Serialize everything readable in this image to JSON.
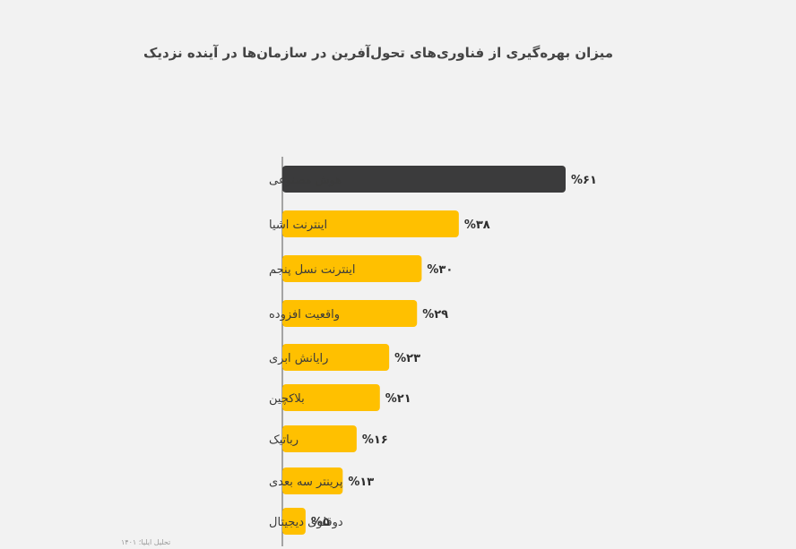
{
  "chart_data": {
    "type": "bar",
    "orientation": "horizontal",
    "title": "میزان بهره‌گیری از فناوری‌های تحول‌آفرین در سازمان‌ها در آینده نزدیک",
    "categories": [
      "هوش مصنوعی",
      "اینترنت اشیا",
      "اینترنت نسل پنجم",
      "واقعیت افزوده",
      "رایانش ابری",
      "بلاکچین",
      "رباتیک",
      "پرینتر سه بعدی",
      "دوقلوی دیجیتال"
    ],
    "values": [
      61,
      38,
      30,
      29,
      23,
      21,
      16,
      13,
      5
    ],
    "value_labels": [
      "%۶۱",
      "%۳۸",
      "%۳۰",
      "%۲۹",
      "%۲۳",
      "%۲۱",
      "%۱۶",
      "%۱۳",
      "%۵"
    ],
    "highlight_index": 0,
    "xlim": [
      0,
      61
    ],
    "grid": false,
    "colors": {
      "highlight": "#3b3b3c",
      "bar": "#ffc000",
      "axis": "#555555"
    }
  },
  "source_note": "تحلیل ایلیا؛ ۱۴۰۱"
}
